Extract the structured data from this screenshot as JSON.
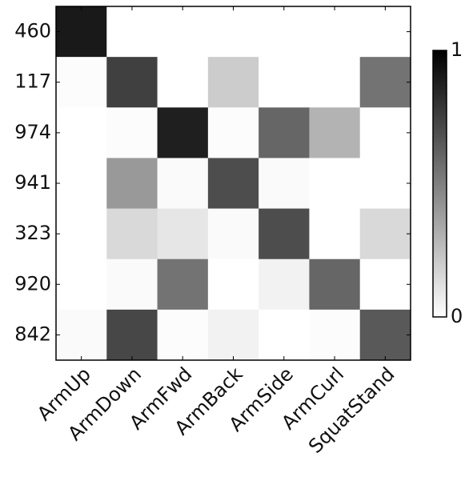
{
  "chart_data": {
    "type": "heatmap",
    "categories": [
      "ArmUp",
      "ArmDown",
      "ArmFwd",
      "ArmBack",
      "ArmSide",
      "ArmCurl",
      "SquatStand"
    ],
    "rows": [
      "460",
      "117",
      "974",
      "941",
      "323",
      "920",
      "842"
    ],
    "values": [
      [
        0.9,
        0,
        0,
        0,
        0,
        0,
        0
      ],
      [
        0.01,
        0.75,
        0,
        0.2,
        0,
        0,
        0.55
      ],
      [
        0,
        0.01,
        0.88,
        0.01,
        0.6,
        0.3,
        0
      ],
      [
        0,
        0.4,
        0.02,
        0.7,
        0.02,
        0,
        0
      ],
      [
        0,
        0.15,
        0.1,
        0.02,
        0.7,
        0,
        0.15
      ],
      [
        0,
        0.02,
        0.55,
        0,
        0.05,
        0.6,
        0
      ],
      [
        0.02,
        0.72,
        0.01,
        0.05,
        0,
        0.01,
        0.65
      ]
    ],
    "colormap": "gray_r",
    "clim": [
      0,
      1
    ],
    "cticks": [
      0,
      1
    ]
  }
}
